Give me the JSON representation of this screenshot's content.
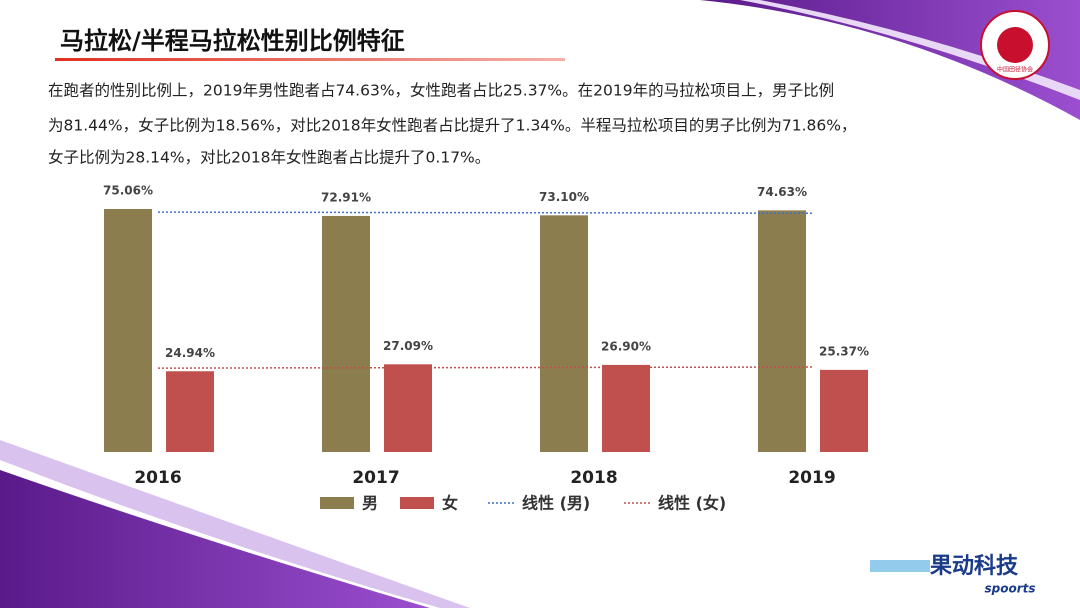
{
  "header": {
    "title": "马拉松/半程马拉松性别比例特征"
  },
  "paragraph": [
    "在跑者的性别比例上，2019年男性跑者占74.63%，女性跑者占比25.37%。在2019年的马拉松项目上，男子比例",
    "为81.44%，女子比例为18.56%，对比2018年女性跑者占比提升了1.34%。半程马拉松项目的男子比例为71.86%，",
    "女子比例为28.14%，对比2018年女性跑者占比提升了0.17%。"
  ],
  "logo": {
    "text": "中国田径协会"
  },
  "brand": {
    "name": "果动科技",
    "sub": "spoorts"
  },
  "chart_data": {
    "type": "bar",
    "categories": [
      "2016",
      "2017",
      "2018",
      "2019"
    ],
    "series": [
      {
        "name": "男",
        "color": "#8c7d4e",
        "values": [
          75.06,
          72.91,
          73.1,
          74.63
        ],
        "value_labels": [
          "75.06%",
          "72.91%",
          "73.10%",
          "74.63%"
        ],
        "trendline": {
          "name": "线性 (男)",
          "color": "#4472c4"
        }
      },
      {
        "name": "女",
        "color": "#c0504d",
        "values": [
          24.94,
          27.09,
          26.9,
          25.37
        ],
        "value_labels": [
          "24.94%",
          "27.09%",
          "26.90%",
          "25.37%"
        ],
        "trendline": {
          "name": "线性 (女)",
          "color": "#c0504d"
        }
      }
    ],
    "ylim": [
      0,
      80
    ]
  }
}
